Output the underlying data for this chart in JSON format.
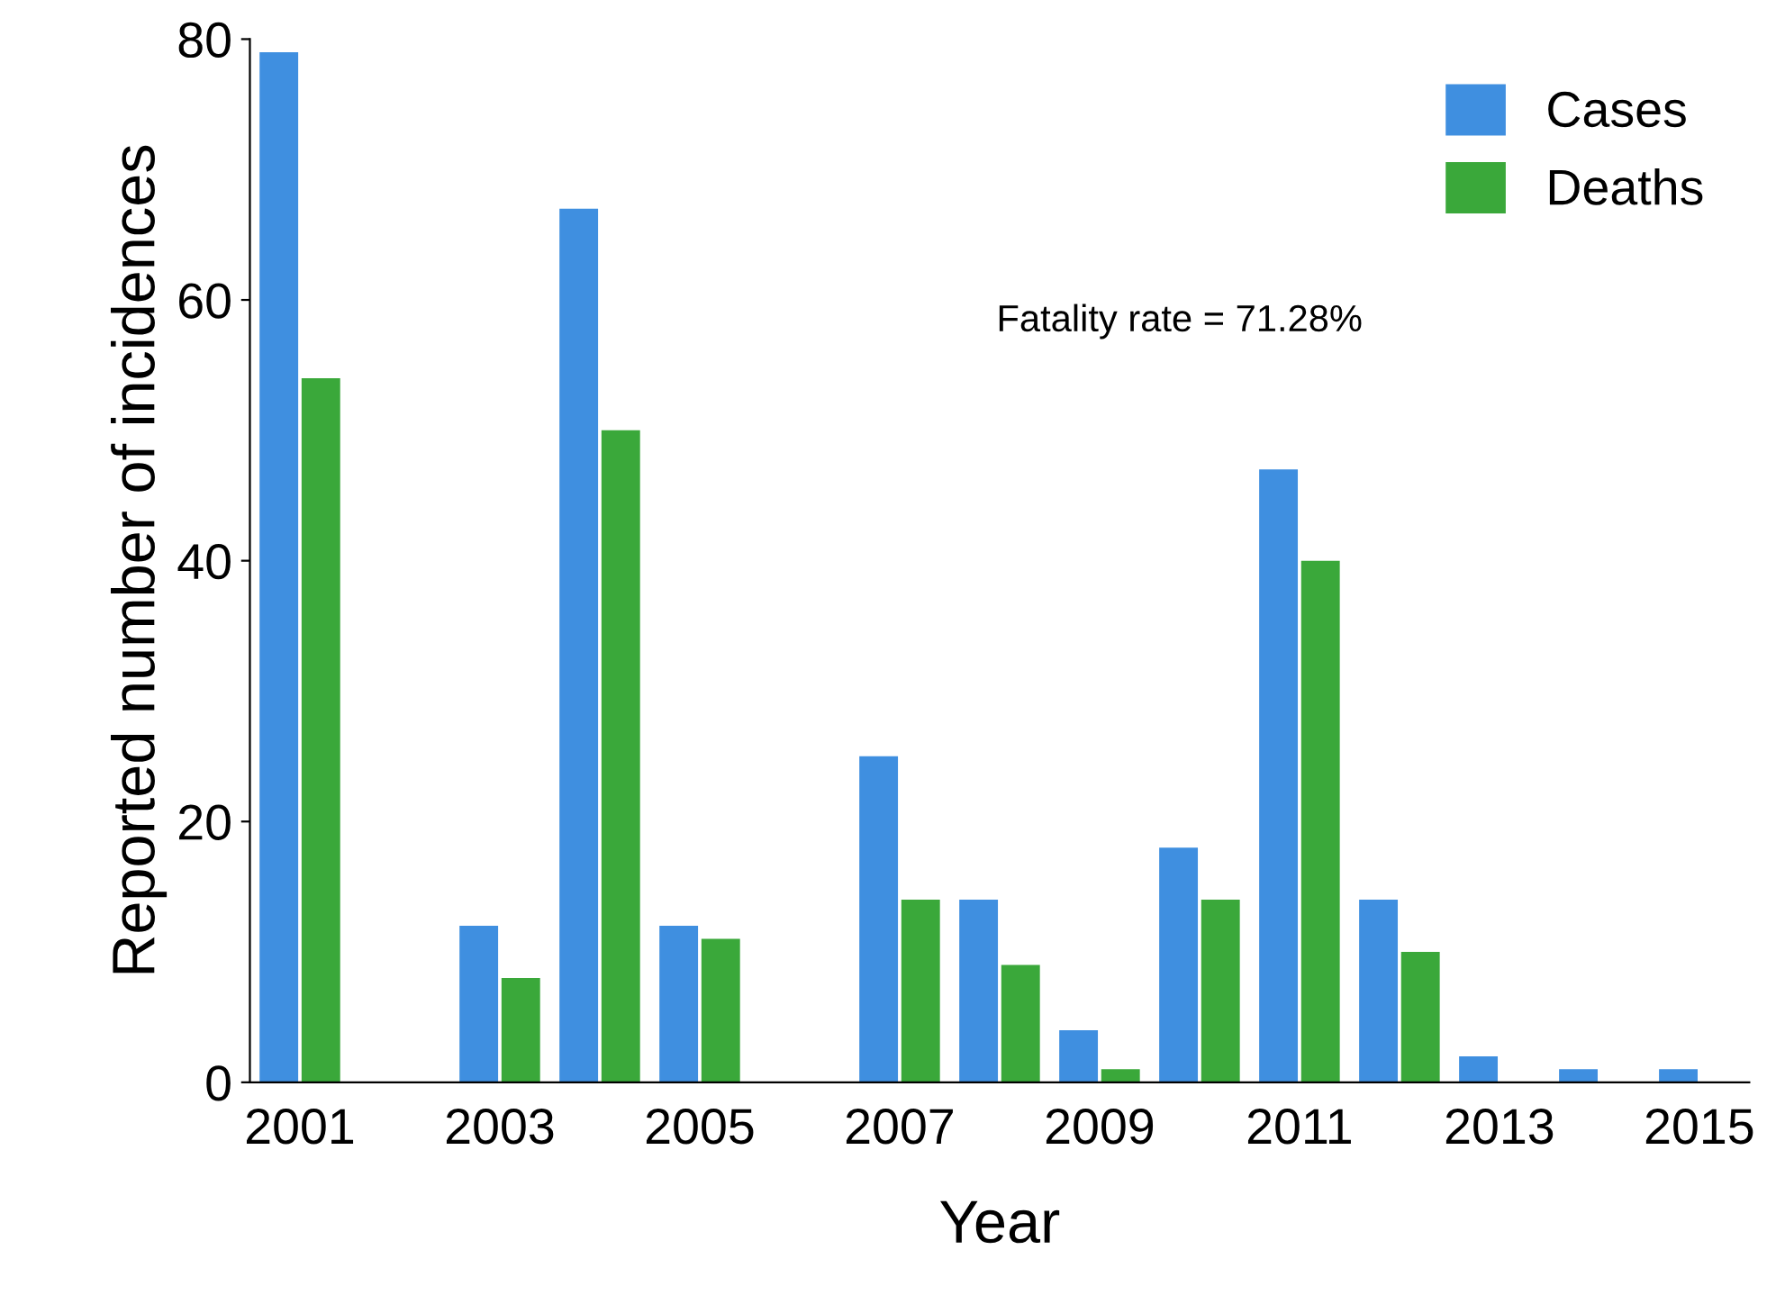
{
  "chart_data": {
    "type": "bar",
    "xlabel": "Year",
    "ylabel": "Reported number of incidences",
    "categories": [
      "2001",
      null,
      "2003",
      null,
      "2005",
      null,
      "2007",
      null,
      "2009",
      null,
      "2011",
      null,
      "2013",
      null,
      "2015"
    ],
    "series": [
      {
        "name": "Cases",
        "color": "#3f8fe0",
        "values": [
          79,
          0,
          12,
          67,
          12,
          0,
          25,
          14,
          4,
          18,
          47,
          14,
          2,
          1,
          1
        ]
      },
      {
        "name": "Deaths",
        "color": "#3aa83a",
        "values": [
          54,
          0,
          8,
          50,
          11,
          0,
          14,
          9,
          1,
          14,
          40,
          10,
          0,
          0,
          0
        ]
      }
    ],
    "ylim": [
      0,
      80
    ],
    "yticks": [
      0,
      20,
      40,
      60,
      80
    ],
    "grid": false,
    "legend": "top right",
    "annotations": [
      "Fatality rate = 71.28%"
    ]
  }
}
